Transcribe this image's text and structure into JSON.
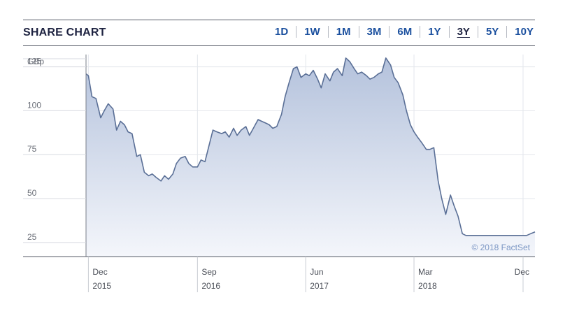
{
  "header": {
    "title": "SHARE CHART",
    "ranges": [
      "1D",
      "1W",
      "1M",
      "3M",
      "6M",
      "1Y",
      "3Y",
      "5Y",
      "10Y"
    ],
    "active_range": "3Y"
  },
  "chart_data": {
    "type": "area",
    "unit_label": "GBp",
    "credit": "© 2018 FactSet",
    "ylim": [
      17,
      132
    ],
    "yticks": [
      25,
      50,
      75,
      100,
      125
    ],
    "xlim": [
      "2015-11-25",
      "2018-12-31"
    ],
    "xticks": [
      {
        "date": "2015-12-01",
        "month": "Dec",
        "year": "2015"
      },
      {
        "date": "2016-09-01",
        "month": "Sep",
        "year": "2016"
      },
      {
        "date": "2017-06-01",
        "month": "Jun",
        "year": "2017"
      },
      {
        "date": "2018-03-01",
        "month": "Mar",
        "year": "2018"
      },
      {
        "date": "2018-12-01",
        "month": "Dec",
        "year": ""
      }
    ],
    "grid": true,
    "colors": {
      "line": "#5a6f96",
      "fill_top": "#b4c2dc",
      "fill_bottom": "#f4f6fb",
      "grid": "#e3e6ec"
    },
    "series": [
      {
        "x": [
          "2015-11-25",
          "2015-12-01",
          "2015-12-10",
          "2015-12-20",
          "2016-01-01",
          "2016-01-10",
          "2016-01-20",
          "2016-02-01",
          "2016-02-10",
          "2016-02-20",
          "2016-03-01",
          "2016-03-10",
          "2016-03-20",
          "2016-04-01",
          "2016-04-10",
          "2016-04-20",
          "2016-05-01",
          "2016-05-10",
          "2016-05-20",
          "2016-06-01",
          "2016-06-10",
          "2016-06-20",
          "2016-07-01",
          "2016-07-10",
          "2016-07-20",
          "2016-08-01",
          "2016-08-10",
          "2016-08-20",
          "2016-09-01",
          "2016-09-10",
          "2016-09-20",
          "2016-10-01",
          "2016-10-10",
          "2016-10-20",
          "2016-11-01",
          "2016-11-10",
          "2016-11-20",
          "2016-12-01",
          "2016-12-10",
          "2016-12-20",
          "2017-01-01",
          "2017-01-10",
          "2017-01-20",
          "2017-02-01",
          "2017-02-10",
          "2017-02-20",
          "2017-03-01",
          "2017-03-10",
          "2017-03-20",
          "2017-04-01",
          "2017-04-10",
          "2017-04-20",
          "2017-05-01",
          "2017-05-10",
          "2017-05-20",
          "2017-06-01",
          "2017-06-10",
          "2017-06-20",
          "2017-07-01",
          "2017-07-10",
          "2017-07-20",
          "2017-08-01",
          "2017-08-10",
          "2017-08-20",
          "2017-09-01",
          "2017-09-10",
          "2017-09-20",
          "2017-10-01",
          "2017-10-10",
          "2017-10-20",
          "2017-11-01",
          "2017-11-10",
          "2017-11-20",
          "2017-12-01",
          "2017-12-10",
          "2017-12-20",
          "2018-01-01",
          "2018-01-10",
          "2018-01-20",
          "2018-02-01",
          "2018-02-10",
          "2018-02-20",
          "2018-03-01",
          "2018-03-10",
          "2018-03-20",
          "2018-04-01",
          "2018-04-10",
          "2018-04-20",
          "2018-05-01",
          "2018-05-10",
          "2018-05-20",
          "2018-06-01",
          "2018-06-10",
          "2018-06-20",
          "2018-07-01",
          "2018-07-10",
          "2018-07-20",
          "2018-08-01",
          "2018-08-10",
          "2018-08-20",
          "2018-09-01",
          "2018-09-10",
          "2018-09-20",
          "2018-10-01",
          "2018-10-10",
          "2018-10-20",
          "2018-11-01",
          "2018-11-10",
          "2018-11-20",
          "2018-12-01",
          "2018-12-10",
          "2018-12-20",
          "2018-12-31"
        ],
        "y": [
          121,
          120,
          108,
          107,
          96,
          100,
          104,
          101,
          89,
          94,
          92,
          88,
          87,
          74,
          75,
          65,
          63,
          64,
          62,
          60,
          63,
          61,
          64,
          70,
          73,
          74,
          70,
          68,
          68,
          72,
          71,
          81,
          89,
          88,
          87,
          88,
          85,
          90,
          86,
          89,
          91,
          86,
          90,
          95,
          94,
          93,
          92,
          90,
          91,
          98,
          108,
          116,
          124,
          125,
          119,
          121,
          120,
          123,
          118,
          113,
          121,
          117,
          122,
          124,
          120,
          130,
          128,
          124,
          121,
          122,
          120,
          118,
          119,
          121,
          122,
          130,
          126,
          119,
          116,
          109,
          100,
          92,
          88,
          85,
          82,
          78,
          78,
          79,
          60,
          50,
          41,
          52,
          46,
          40,
          30,
          29,
          29,
          29,
          29,
          29,
          29,
          29,
          29,
          29,
          29,
          29,
          29,
          29,
          29,
          29,
          29,
          30,
          31
        ]
      }
    ]
  }
}
